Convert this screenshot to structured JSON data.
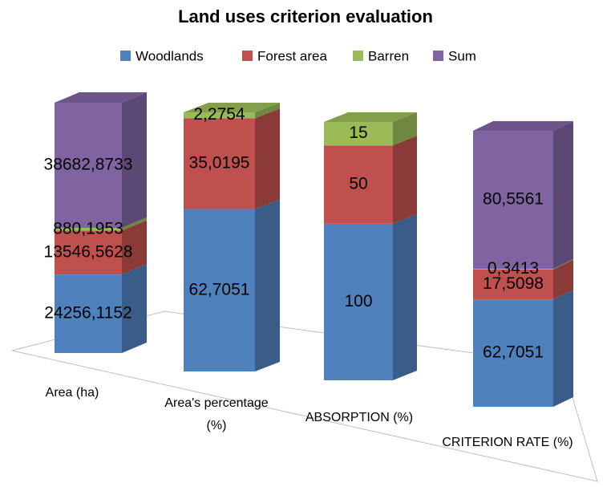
{
  "chart_data": {
    "type": "bar",
    "stacking": "percent",
    "title": "Land uses criterion evaluation",
    "categories": [
      "Area (ha)",
      "Area's percentage (%)",
      "ABSORPTION (%)",
      "CRITERION RATE (%)"
    ],
    "series": [
      {
        "name": "Woodlands",
        "color": "#4f81bd",
        "values": [
          24256.1152,
          62.7051,
          100,
          62.7051
        ],
        "value_labels": [
          "24256,1152",
          "62,7051",
          "100",
          "62,7051"
        ]
      },
      {
        "name": "Forest area",
        "color": "#c0504d",
        "values": [
          13546.5628,
          35.0195,
          50,
          17.5098
        ],
        "value_labels": [
          "13546,5628",
          "35,0195",
          "50",
          "17,5098"
        ]
      },
      {
        "name": "Barren",
        "color": "#9bbb59",
        "values": [
          880.1953,
          2.2754,
          15,
          0.3413
        ],
        "value_labels": [
          "880,1953",
          "2,2754",
          "15",
          "0,3413"
        ]
      },
      {
        "name": "Sum",
        "color": "#8064a2",
        "values": [
          38682.8733,
          null,
          null,
          80.5561
        ],
        "value_labels": [
          "38682,8733",
          null,
          null,
          "80,5561"
        ]
      }
    ],
    "legend": "top"
  }
}
